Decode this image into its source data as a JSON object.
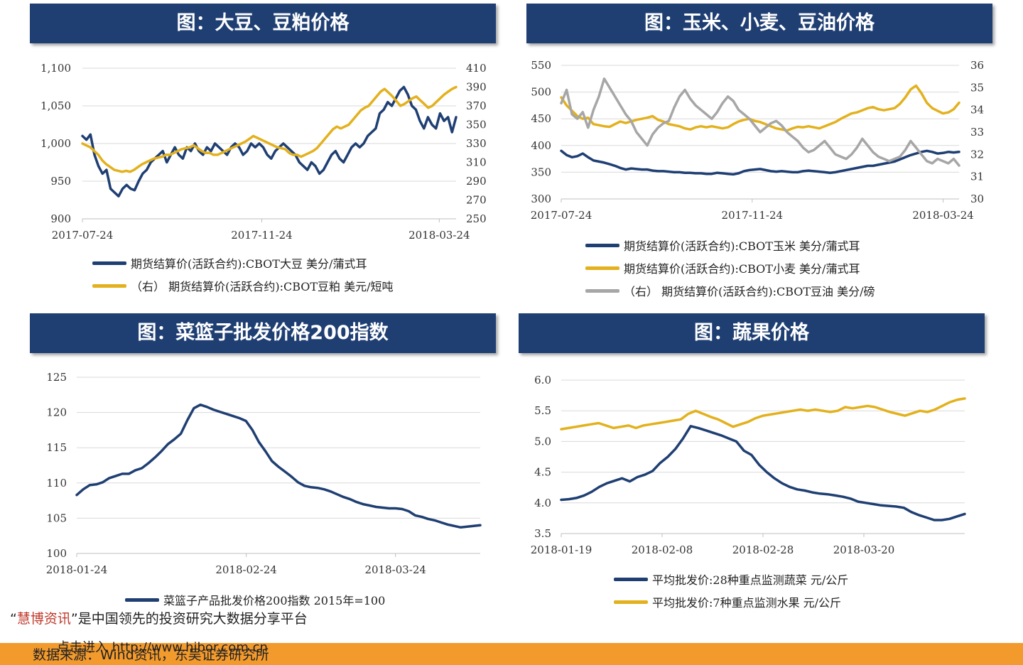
{
  "chart_data": [
    {
      "type": "line",
      "title": "图：大豆、豆粕价格",
      "x_ticks": [
        "2017-07-24",
        "2017-11-24",
        "2018-03-24"
      ],
      "ylim": [
        900,
        1100
      ],
      "y_ticks": [
        "1,100",
        "1,050",
        "1,000",
        "950",
        "900"
      ],
      "y2lim": [
        250,
        410
      ],
      "y2_ticks": [
        "410",
        "390",
        "370",
        "350",
        "330",
        "310",
        "290",
        "270",
        "250"
      ],
      "series": [
        {
          "name": "期货结算价(活跃合约):CBOT大豆  美分/蒲式耳",
          "axis": "left",
          "color": "#1f3f73",
          "values": [
            1010,
            1005,
            1012,
            985,
            970,
            960,
            965,
            940,
            935,
            930,
            940,
            945,
            940,
            938,
            950,
            960,
            965,
            975,
            980,
            985,
            990,
            975,
            985,
            995,
            985,
            980,
            995,
            990,
            1000,
            990,
            985,
            995,
            990,
            1000,
            995,
            990,
            985,
            995,
            1000,
            995,
            985,
            990,
            1000,
            995,
            1000,
            995,
            985,
            980,
            990,
            995,
            1000,
            995,
            990,
            985,
            975,
            970,
            965,
            975,
            970,
            960,
            965,
            975,
            985,
            990,
            980,
            975,
            985,
            995,
            1000,
            995,
            1000,
            1010,
            1015,
            1020,
            1040,
            1045,
            1055,
            1050,
            1060,
            1070,
            1075,
            1065,
            1050,
            1045,
            1030,
            1020,
            1035,
            1025,
            1020,
            1040,
            1030,
            1035,
            1015,
            1035
          ]
        },
        {
          "name": "（右）  期货结算价(活跃合约):CBOT豆粕  美元/短吨",
          "axis": "right",
          "color": "#e3b11d",
          "values": [
            330,
            328,
            326,
            322,
            318,
            312,
            308,
            305,
            302,
            301,
            300,
            301,
            300,
            302,
            305,
            308,
            310,
            312,
            314,
            315,
            316,
            318,
            318,
            320,
            322,
            324,
            325,
            326,
            328,
            325,
            322,
            320,
            320,
            318,
            318,
            320,
            322,
            324,
            326,
            328,
            330,
            332,
            335,
            338,
            336,
            334,
            332,
            330,
            328,
            326,
            325,
            324,
            320,
            318,
            318,
            316,
            318,
            320,
            322,
            325,
            330,
            335,
            340,
            345,
            348,
            346,
            348,
            350,
            355,
            360,
            365,
            368,
            370,
            375,
            380,
            385,
            388,
            384,
            380,
            375,
            370,
            372,
            375,
            378,
            380,
            376,
            372,
            368,
            370,
            374,
            378,
            382,
            385,
            388,
            390
          ]
        }
      ]
    },
    {
      "type": "line",
      "title": "图：玉米、小麦、豆油价格",
      "x_ticks": [
        "2017-07-24",
        "2017-11-24",
        "2018-03-24"
      ],
      "ylim": [
        300,
        550
      ],
      "y_ticks": [
        "550",
        "500",
        "450",
        "400",
        "350",
        "300"
      ],
      "y2lim": [
        30,
        36
      ],
      "y2_ticks": [
        "36",
        "35",
        "34",
        "33",
        "32",
        "31",
        "30"
      ],
      "series": [
        {
          "name": "期货结算价(活跃合约):CBOT玉米  美分/蒲式耳",
          "axis": "left",
          "color": "#1f3f73",
          "values": [
            390,
            382,
            378,
            380,
            385,
            378,
            372,
            370,
            368,
            365,
            362,
            358,
            355,
            357,
            356,
            355,
            355,
            353,
            352,
            352,
            351,
            350,
            350,
            349,
            349,
            348,
            348,
            347,
            347,
            349,
            348,
            347,
            346,
            348,
            352,
            354,
            355,
            356,
            354,
            352,
            351,
            352,
            351,
            350,
            350,
            352,
            353,
            352,
            351,
            350,
            349,
            350,
            352,
            354,
            356,
            358,
            360,
            362,
            362,
            364,
            366,
            368,
            370,
            374,
            378,
            382,
            385,
            388,
            390,
            388,
            385,
            386,
            388,
            387,
            388
          ]
        },
        {
          "name": "期货结算价(活跃合约):CBOT小麦  美分/蒲式耳",
          "axis": "left",
          "color": "#e3b11d",
          "values": [
            490,
            475,
            465,
            455,
            450,
            452,
            440,
            438,
            436,
            435,
            440,
            445,
            442,
            445,
            448,
            450,
            452,
            455,
            448,
            445,
            440,
            438,
            436,
            432,
            430,
            434,
            436,
            434,
            436,
            434,
            432,
            434,
            440,
            445,
            448,
            450,
            446,
            444,
            440,
            436,
            432,
            430,
            428,
            432,
            435,
            434,
            436,
            434,
            432,
            436,
            440,
            444,
            450,
            455,
            460,
            462,
            466,
            470,
            472,
            468,
            466,
            468,
            470,
            478,
            490,
            505,
            512,
            498,
            480,
            470,
            465,
            460,
            462,
            468,
            480
          ]
        },
        {
          "name": "（右）  期货结算价(活跃合约):CBOT豆油  美分/磅",
          "axis": "right",
          "color": "#a6a6a6",
          "values": [
            34.3,
            34.9,
            33.8,
            33.6,
            33.9,
            33.2,
            34.0,
            34.6,
            35.4,
            35.0,
            34.6,
            34.2,
            33.8,
            33.5,
            33.0,
            32.7,
            32.4,
            32.9,
            33.2,
            33.4,
            33.5,
            34.1,
            34.6,
            34.9,
            34.5,
            34.2,
            34.0,
            33.8,
            33.6,
            33.9,
            34.3,
            34.6,
            34.4,
            34.0,
            33.8,
            33.6,
            33.3,
            33.0,
            33.2,
            33.4,
            33.5,
            33.3,
            33.0,
            32.8,
            32.6,
            32.3,
            32.1,
            32.2,
            32.4,
            32.6,
            32.3,
            32.0,
            31.9,
            31.8,
            32.0,
            32.3,
            32.7,
            32.4,
            32.1,
            31.9,
            31.8,
            31.7,
            31.8,
            31.9,
            32.2,
            32.6,
            32.3,
            32.0,
            31.7,
            31.6,
            31.8,
            31.7,
            31.6,
            31.8,
            31.5
          ]
        }
      ]
    },
    {
      "type": "line",
      "title": "图：菜篮子批发价格200指数",
      "x_ticks": [
        "2018-01-24",
        "2018-02-24",
        "2018-03-24"
      ],
      "ylim": [
        100,
        125
      ],
      "y_ticks": [
        "125",
        "120",
        "115",
        "110",
        "105",
        "100"
      ],
      "series": [
        {
          "name": "菜篮子产品批发价格200指数  2015年=100",
          "axis": "left",
          "color": "#1f3f73",
          "values": [
            108.3,
            109.1,
            109.7,
            109.8,
            110.1,
            110.7,
            111.0,
            111.3,
            111.3,
            111.8,
            112.1,
            112.8,
            113.6,
            114.5,
            115.5,
            116.2,
            117.0,
            118.9,
            120.6,
            121.1,
            120.8,
            120.4,
            120.1,
            119.8,
            119.5,
            119.2,
            118.8,
            117.5,
            115.8,
            114.5,
            113.1,
            112.3,
            111.6,
            110.9,
            110.1,
            109.6,
            109.4,
            109.3,
            109.1,
            108.8,
            108.4,
            108.0,
            107.7,
            107.3,
            107.0,
            106.8,
            106.6,
            106.5,
            106.4,
            106.4,
            106.3,
            106.0,
            105.4,
            105.2,
            104.9,
            104.7,
            104.4,
            104.1,
            103.9,
            103.7,
            103.8,
            103.9,
            104.0
          ]
        }
      ]
    },
    {
      "type": "line",
      "title": "图：蔬果价格",
      "x_ticks": [
        "2018-01-19",
        "2018-02-08",
        "2018-02-28",
        "2018-03-20"
      ],
      "ylim": [
        3.5,
        6.0
      ],
      "y_ticks": [
        "6.0",
        "5.5",
        "5.0",
        "4.5",
        "4.0",
        "3.5"
      ],
      "series": [
        {
          "name": "平均批发价:28种重点监测蔬菜  元/公斤",
          "axis": "left",
          "color": "#1f3f73",
          "values": [
            4.05,
            4.06,
            4.08,
            4.12,
            4.18,
            4.26,
            4.32,
            4.36,
            4.4,
            4.35,
            4.42,
            4.46,
            4.52,
            4.65,
            4.75,
            4.88,
            5.05,
            5.25,
            5.22,
            5.18,
            5.14,
            5.1,
            5.05,
            5.0,
            4.85,
            4.78,
            4.62,
            4.5,
            4.4,
            4.32,
            4.26,
            4.22,
            4.2,
            4.17,
            4.15,
            4.14,
            4.12,
            4.1,
            4.07,
            4.02,
            4.0,
            3.98,
            3.96,
            3.95,
            3.94,
            3.92,
            3.85,
            3.8,
            3.76,
            3.72,
            3.72,
            3.74,
            3.78,
            3.82
          ]
        },
        {
          "name": "平均批发价:7种重点监测水果  元/公斤",
          "axis": "left",
          "color": "#e3b11d",
          "values": [
            5.2,
            5.22,
            5.24,
            5.26,
            5.28,
            5.3,
            5.26,
            5.22,
            5.24,
            5.26,
            5.22,
            5.26,
            5.28,
            5.3,
            5.32,
            5.34,
            5.36,
            5.45,
            5.5,
            5.45,
            5.4,
            5.36,
            5.3,
            5.24,
            5.28,
            5.32,
            5.38,
            5.42,
            5.44,
            5.46,
            5.48,
            5.5,
            5.52,
            5.5,
            5.52,
            5.5,
            5.48,
            5.5,
            5.56,
            5.54,
            5.56,
            5.58,
            5.56,
            5.52,
            5.48,
            5.45,
            5.42,
            5.46,
            5.5,
            5.48,
            5.52,
            5.58,
            5.64,
            5.68,
            5.7
          ]
        }
      ]
    }
  ],
  "footer": {
    "promo_quote_open": "“",
    "promo_brand": "慧博资讯",
    "promo_quote_close": "”",
    "promo_text": "是中国领先的投资研究大数据分享平台",
    "enter_text": "点击进入 http://www.hibor.com.cn",
    "source_text": "数据来源：Wind资讯，东吴证券研究所"
  }
}
